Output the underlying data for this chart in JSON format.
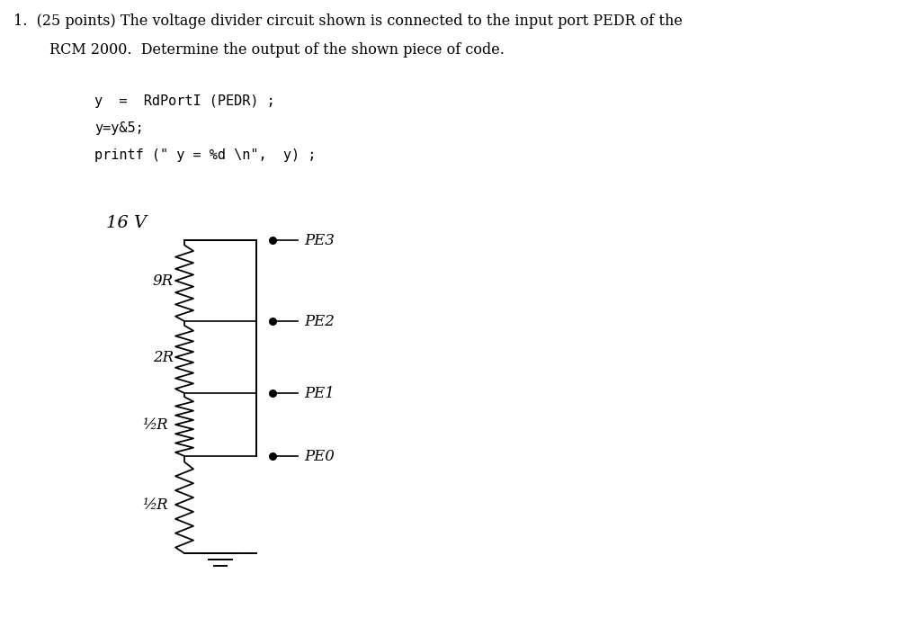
{
  "background_color": "#ffffff",
  "fig_width": 10.24,
  "fig_height": 6.97,
  "dpi": 100,
  "voltage_label": "16 V",
  "resistor_labels": [
    "9R",
    "2R",
    "½R",
    "½R"
  ],
  "port_labels": [
    "PE3",
    "PE2",
    "PE1",
    "PE0"
  ],
  "code_line1": "y  =  RdPortI (PEDR) ;",
  "code_line2": "y=y&5;",
  "code_line3": "printf (\" y = %d \\n\",  y) ;",
  "title_line1": "1.  (25 points) The voltage divider circuit shown is connected to the input port PEDR of the",
  "title_line2": "     RCM 2000.  Determine the output of the shown piece of code."
}
